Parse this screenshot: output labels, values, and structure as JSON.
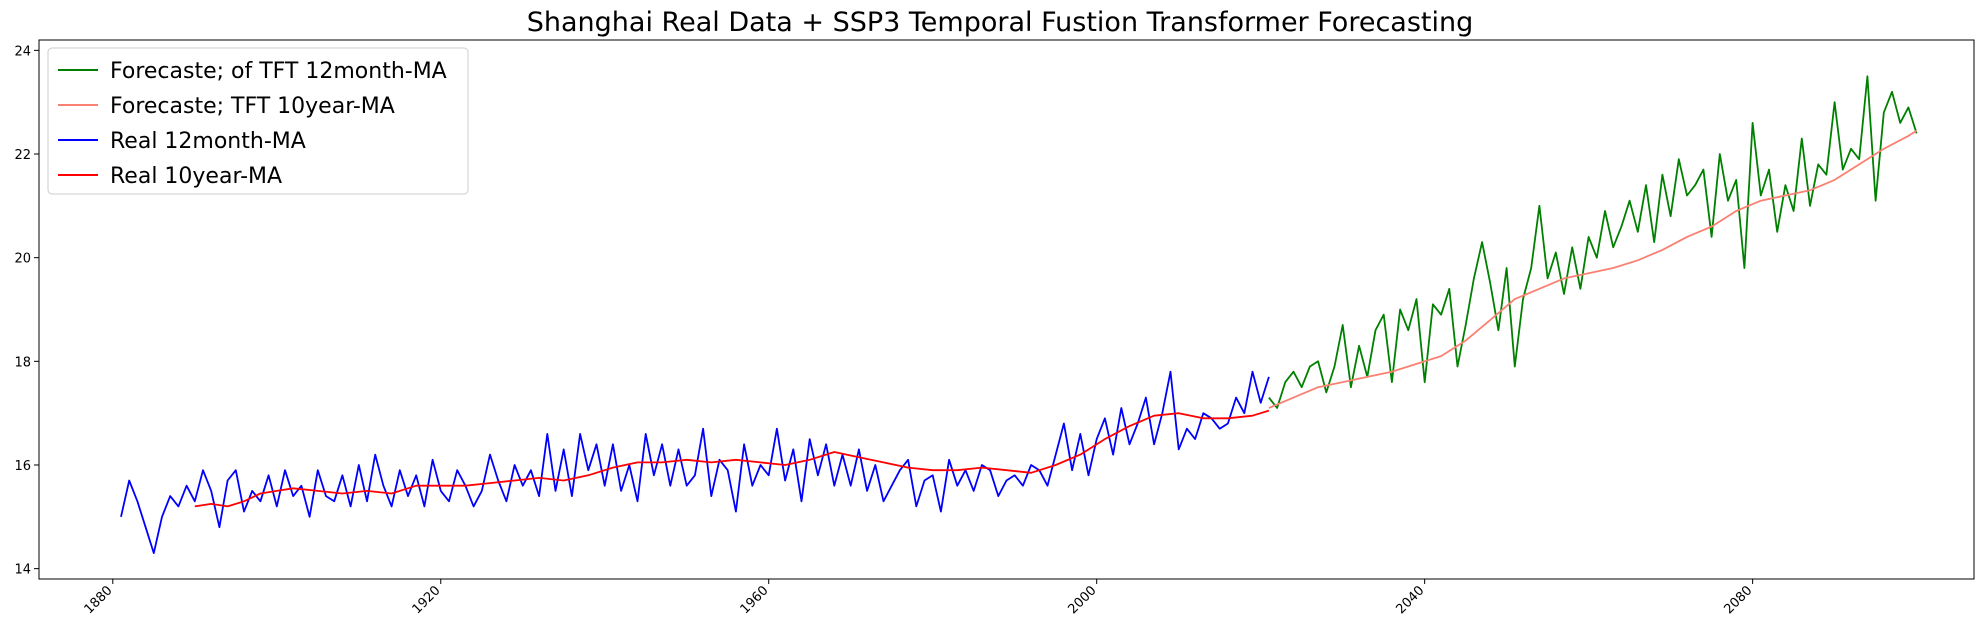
{
  "chart_data": {
    "type": "line",
    "title": "Shanghai Real Data + SSP3 Temporal Fustion Transformer Forecasting",
    "xlabel": "",
    "ylabel": "",
    "xlim": [
      1871,
      2107
    ],
    "ylim": [
      13.8,
      24.2
    ],
    "xticks": [
      1880,
      1920,
      1960,
      2000,
      2040,
      2080
    ],
    "yticks": [
      14,
      16,
      18,
      20,
      22,
      24
    ],
    "legend_position": "top-left",
    "grid": false,
    "series": [
      {
        "name": "Forecaste; of TFT 12month-MA",
        "color": "#008000",
        "x": [
          2021,
          2022,
          2023,
          2024,
          2025,
          2026,
          2027,
          2028,
          2029,
          2030,
          2031,
          2032,
          2033,
          2034,
          2035,
          2036,
          2037,
          2038,
          2039,
          2040,
          2041,
          2042,
          2043,
          2044,
          2045,
          2046,
          2047,
          2048,
          2049,
          2050,
          2051,
          2052,
          2053,
          2054,
          2055,
          2056,
          2057,
          2058,
          2059,
          2060,
          2061,
          2062,
          2063,
          2064,
          2065,
          2066,
          2067,
          2068,
          2069,
          2070,
          2071,
          2072,
          2073,
          2074,
          2075,
          2076,
          2077,
          2078,
          2079,
          2080,
          2081,
          2082,
          2083,
          2084,
          2085,
          2086,
          2087,
          2088,
          2089,
          2090,
          2091,
          2092,
          2093,
          2094,
          2095,
          2096,
          2097,
          2098,
          2099,
          2100
        ],
        "y": [
          17.3,
          17.1,
          17.6,
          17.8,
          17.5,
          17.9,
          18.0,
          17.4,
          17.9,
          18.7,
          17.5,
          18.3,
          17.7,
          18.6,
          18.9,
          17.6,
          19.0,
          18.6,
          19.2,
          17.6,
          19.1,
          18.9,
          19.4,
          17.9,
          18.7,
          19.6,
          20.3,
          19.5,
          18.6,
          19.8,
          17.9,
          19.2,
          19.8,
          21.0,
          19.6,
          20.1,
          19.3,
          20.2,
          19.4,
          20.4,
          20.0,
          20.9,
          20.2,
          20.6,
          21.1,
          20.5,
          21.4,
          20.3,
          21.6,
          20.8,
          21.9,
          21.2,
          21.4,
          21.7,
          20.4,
          22.0,
          21.1,
          21.5,
          19.8,
          22.6,
          21.2,
          21.7,
          20.5,
          21.4,
          20.9,
          22.3,
          21.0,
          21.8,
          21.6,
          23.0,
          21.7,
          22.1,
          21.9,
          23.5,
          21.1,
          22.8,
          23.2,
          22.6,
          22.9,
          22.4
        ]
      },
      {
        "name": "Forecaste; TFT 10year-MA",
        "color": "#fa8072",
        "x": [
          2021,
          2024,
          2027,
          2030,
          2033,
          2036,
          2039,
          2042,
          2045,
          2048,
          2051,
          2054,
          2057,
          2060,
          2063,
          2066,
          2069,
          2072,
          2075,
          2078,
          2081,
          2084,
          2087,
          2090,
          2093,
          2096,
          2099,
          2100
        ],
        "y": [
          17.1,
          17.3,
          17.5,
          17.6,
          17.7,
          17.8,
          17.95,
          18.1,
          18.4,
          18.8,
          19.2,
          19.4,
          19.6,
          19.7,
          19.8,
          19.95,
          20.15,
          20.4,
          20.6,
          20.9,
          21.1,
          21.2,
          21.3,
          21.5,
          21.8,
          22.1,
          22.35,
          22.45
        ]
      },
      {
        "name": "Real 12month-MA",
        "color": "#0000ff",
        "x": [
          1881,
          1882,
          1883,
          1884,
          1885,
          1886,
          1887,
          1888,
          1889,
          1890,
          1891,
          1892,
          1893,
          1894,
          1895,
          1896,
          1897,
          1898,
          1899,
          1900,
          1901,
          1902,
          1903,
          1904,
          1905,
          1906,
          1907,
          1908,
          1909,
          1910,
          1911,
          1912,
          1913,
          1914,
          1915,
          1916,
          1917,
          1918,
          1919,
          1920,
          1921,
          1922,
          1923,
          1924,
          1925,
          1926,
          1927,
          1928,
          1929,
          1930,
          1931,
          1932,
          1933,
          1934,
          1935,
          1936,
          1937,
          1938,
          1939,
          1940,
          1941,
          1942,
          1943,
          1944,
          1945,
          1946,
          1947,
          1948,
          1949,
          1950,
          1951,
          1952,
          1953,
          1954,
          1955,
          1956,
          1957,
          1958,
          1959,
          1960,
          1961,
          1962,
          1963,
          1964,
          1965,
          1966,
          1967,
          1968,
          1969,
          1970,
          1971,
          1972,
          1973,
          1974,
          1975,
          1976,
          1977,
          1978,
          1979,
          1980,
          1981,
          1982,
          1983,
          1984,
          1985,
          1986,
          1987,
          1988,
          1989,
          1990,
          1991,
          1992,
          1993,
          1994,
          1995,
          1996,
          1997,
          1998,
          1999,
          2000,
          2001,
          2002,
          2003,
          2004,
          2005,
          2006,
          2007,
          2008,
          2009,
          2010,
          2011,
          2012,
          2013,
          2014,
          2015,
          2016,
          2017,
          2018,
          2019,
          2020,
          2021
        ],
        "y": [
          15.0,
          15.7,
          15.3,
          14.8,
          14.3,
          15.0,
          15.4,
          15.2,
          15.6,
          15.3,
          15.9,
          15.5,
          14.8,
          15.7,
          15.9,
          15.1,
          15.5,
          15.3,
          15.8,
          15.2,
          15.9,
          15.4,
          15.6,
          15.0,
          15.9,
          15.4,
          15.3,
          15.8,
          15.2,
          16.0,
          15.3,
          16.2,
          15.6,
          15.2,
          15.9,
          15.4,
          15.8,
          15.2,
          16.1,
          15.5,
          15.3,
          15.9,
          15.6,
          15.2,
          15.5,
          16.2,
          15.7,
          15.3,
          16.0,
          15.6,
          15.9,
          15.4,
          16.6,
          15.5,
          16.3,
          15.4,
          16.6,
          15.9,
          16.4,
          15.6,
          16.4,
          15.5,
          16.0,
          15.3,
          16.6,
          15.8,
          16.4,
          15.6,
          16.3,
          15.6,
          15.8,
          16.7,
          15.4,
          16.1,
          15.9,
          15.1,
          16.4,
          15.6,
          16.0,
          15.8,
          16.7,
          15.7,
          16.3,
          15.3,
          16.5,
          15.8,
          16.4,
          15.6,
          16.2,
          15.6,
          16.3,
          15.5,
          16.0,
          15.3,
          15.6,
          15.9,
          16.1,
          15.2,
          15.7,
          15.8,
          15.1,
          16.1,
          15.6,
          15.9,
          15.5,
          16.0,
          15.9,
          15.4,
          15.7,
          15.8,
          15.6,
          16.0,
          15.9,
          15.6,
          16.2,
          16.8,
          15.9,
          16.6,
          15.8,
          16.5,
          16.9,
          16.2,
          17.1,
          16.4,
          16.8,
          17.3,
          16.4,
          17.0,
          17.8,
          16.3,
          16.7,
          16.5,
          17.0,
          16.9,
          16.7,
          16.8,
          17.3,
          17.0,
          17.8,
          17.2,
          17.7
        ]
      },
      {
        "name": "Real 10year-MA",
        "color": "#ff0000",
        "x": [
          1890,
          1892,
          1894,
          1896,
          1898,
          1900,
          1902,
          1905,
          1908,
          1911,
          1914,
          1917,
          1920,
          1923,
          1926,
          1929,
          1932,
          1935,
          1938,
          1941,
          1944,
          1947,
          1950,
          1953,
          1956,
          1959,
          1962,
          1965,
          1968,
          1971,
          1974,
          1977,
          1980,
          1983,
          1986,
          1989,
          1992,
          1995,
          1998,
          2001,
          2004,
          2007,
          2010,
          2013,
          2016,
          2019,
          2021
        ],
        "y": [
          15.2,
          15.25,
          15.2,
          15.3,
          15.45,
          15.5,
          15.55,
          15.5,
          15.45,
          15.5,
          15.45,
          15.6,
          15.6,
          15.6,
          15.65,
          15.7,
          15.75,
          15.7,
          15.8,
          15.95,
          16.05,
          16.05,
          16.1,
          16.05,
          16.1,
          16.05,
          16.0,
          16.1,
          16.25,
          16.15,
          16.05,
          15.95,
          15.9,
          15.9,
          15.95,
          15.9,
          15.85,
          16.0,
          16.2,
          16.5,
          16.75,
          16.95,
          17.0,
          16.9,
          16.9,
          16.95,
          17.05
        ]
      }
    ]
  }
}
